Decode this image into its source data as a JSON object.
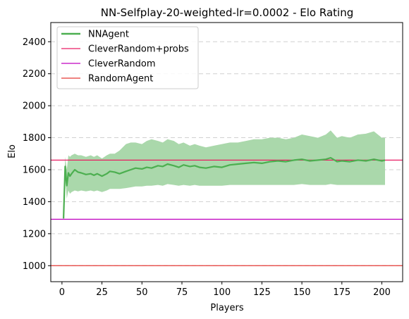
{
  "chart_data": {
    "type": "line",
    "title": "NN-Selfplay-20-weighted-lr=0.0002 - Elo Rating",
    "xlabel": "Players",
    "ylabel": "Elo",
    "xlim": [
      -7,
      213
    ],
    "ylim": [
      900,
      2520
    ],
    "xticks": [
      0,
      25,
      50,
      75,
      100,
      125,
      150,
      175,
      200
    ],
    "yticks": [
      1000,
      1200,
      1400,
      1600,
      1800,
      2000,
      2200,
      2400
    ],
    "grid": "horizontal dashed",
    "legend_position": "upper-left",
    "series": [
      {
        "name": "NNAgent",
        "color": "#4caf50",
        "band_color": "#a5d6a7",
        "x": [
          1,
          2,
          3,
          4,
          5,
          6,
          8,
          10,
          12,
          15,
          18,
          20,
          22,
          25,
          28,
          30,
          33,
          36,
          40,
          43,
          46,
          50,
          53,
          56,
          60,
          63,
          66,
          70,
          73,
          76,
          80,
          83,
          86,
          90,
          95,
          100,
          105,
          110,
          115,
          120,
          125,
          130,
          135,
          140,
          145,
          150,
          155,
          160,
          165,
          168,
          172,
          175,
          180,
          185,
          190,
          195,
          200,
          202
        ],
        "y": [
          1295,
          1620,
          1500,
          1580,
          1560,
          1575,
          1600,
          1585,
          1580,
          1570,
          1575,
          1565,
          1575,
          1560,
          1575,
          1590,
          1585,
          1575,
          1590,
          1600,
          1610,
          1605,
          1615,
          1610,
          1625,
          1620,
          1635,
          1625,
          1615,
          1630,
          1620,
          1625,
          1615,
          1610,
          1620,
          1615,
          1630,
          1635,
          1640,
          1645,
          1640,
          1650,
          1655,
          1650,
          1660,
          1665,
          1655,
          1660,
          1665,
          1675,
          1650,
          1655,
          1650,
          1660,
          1655,
          1665,
          1655,
          1660
        ],
        "lower": [
          1295,
          1560,
          1420,
          1470,
          1450,
          1460,
          1470,
          1465,
          1470,
          1465,
          1470,
          1465,
          1470,
          1460,
          1470,
          1480,
          1480,
          1480,
          1485,
          1490,
          1495,
          1495,
          1500,
          1500,
          1505,
          1500,
          1510,
          1505,
          1500,
          1505,
          1500,
          1505,
          1500,
          1500,
          1500,
          1500,
          1505,
          1505,
          1505,
          1505,
          1505,
          1505,
          1505,
          1505,
          1505,
          1510,
          1505,
          1505,
          1505,
          1510,
          1505,
          1505,
          1505,
          1505,
          1505,
          1505,
          1505,
          1505
        ],
        "upper": [
          1295,
          1680,
          1600,
          1690,
          1680,
          1690,
          1700,
          1690,
          1690,
          1680,
          1690,
          1680,
          1690,
          1670,
          1690,
          1700,
          1700,
          1720,
          1760,
          1770,
          1770,
          1760,
          1780,
          1790,
          1780,
          1770,
          1790,
          1780,
          1760,
          1770,
          1750,
          1760,
          1750,
          1740,
          1750,
          1760,
          1770,
          1770,
          1780,
          1790,
          1790,
          1800,
          1800,
          1790,
          1800,
          1820,
          1810,
          1800,
          1820,
          1845,
          1800,
          1810,
          1800,
          1820,
          1825,
          1840,
          1800,
          1800
        ]
      }
    ],
    "reference_lines": [
      {
        "name": "CleverRandom+probs",
        "y": 1660,
        "color": "#e91e63"
      },
      {
        "name": "CleverRandom",
        "y": 1290,
        "color": "#c000c0"
      },
      {
        "name": "RandomAgent",
        "y": 1000,
        "color": "#e53935"
      }
    ]
  }
}
